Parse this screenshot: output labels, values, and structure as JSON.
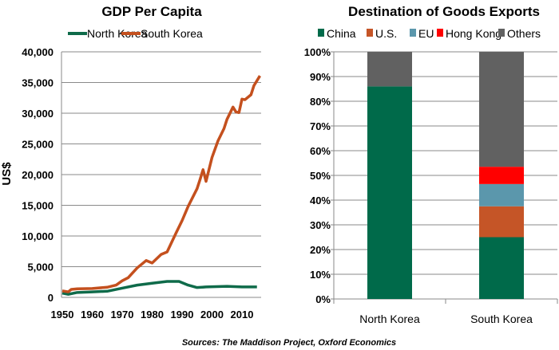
{
  "chart_data": [
    {
      "type": "line",
      "title": "GDP Per Capita",
      "ylabel": "US$",
      "xlabel": "",
      "ylim": [
        0,
        40000
      ],
      "xlim": [
        1950,
        2016
      ],
      "y_ticks": [
        "0",
        "5,000",
        "10,000",
        "15,000",
        "20,000",
        "25,000",
        "30,000",
        "35,000",
        "40,000"
      ],
      "x_ticks": [
        "1950",
        "1960",
        "1970",
        "1980",
        "1990",
        "2000",
        "2010"
      ],
      "grid": "horizontal",
      "legend_position": "top",
      "series": [
        {
          "name": "North Korea",
          "color": "#0f6b4a",
          "x": [
            1950,
            1952,
            1955,
            1960,
            1965,
            1970,
            1975,
            1980,
            1985,
            1989,
            1992,
            1995,
            1998,
            2005,
            2010,
            2015
          ],
          "y": [
            700,
            500,
            800,
            900,
            1000,
            1500,
            2000,
            2300,
            2600,
            2600,
            2000,
            1600,
            1700,
            1800,
            1700,
            1700
          ]
        },
        {
          "name": "South Korea",
          "color": "#c4501e",
          "x": [
            1950,
            1952,
            1953,
            1955,
            1960,
            1965,
            1968,
            1970,
            1972,
            1975,
            1978,
            1980,
            1983,
            1985,
            1988,
            1990,
            1992,
            1995,
            1996,
            1997,
            1998,
            2000,
            2002,
            2004,
            2005,
            2007,
            2008,
            2009,
            2010,
            2011,
            2013,
            2014,
            2016
          ],
          "y": [
            1050,
            900,
            1300,
            1400,
            1450,
            1650,
            2000,
            2700,
            3200,
            4800,
            6000,
            5600,
            7000,
            7400,
            10500,
            12500,
            14800,
            17700,
            19200,
            20800,
            18900,
            22800,
            25500,
            27500,
            29000,
            31000,
            30200,
            30100,
            32300,
            32200,
            33000,
            34500,
            36100
          ]
        }
      ]
    },
    {
      "type": "bar",
      "stacked": true,
      "title": "Destination of Goods Exports",
      "ylim": [
        0,
        100
      ],
      "y_ticks": [
        "0%",
        "10%",
        "20%",
        "30%",
        "40%",
        "50%",
        "60%",
        "70%",
        "80%",
        "90%",
        "100%"
      ],
      "categories": [
        "North Korea",
        "South Korea"
      ],
      "grid": "horizontal",
      "legend_position": "top",
      "series": [
        {
          "name": "China",
          "color": "#006a4a",
          "values": [
            86,
            25
          ]
        },
        {
          "name": "U.S.",
          "color": "#c55527",
          "values": [
            0,
            12.5
          ]
        },
        {
          "name": "EU",
          "color": "#5b97ac",
          "values": [
            0,
            9
          ]
        },
        {
          "name": "Hong Kong",
          "color": "#ff0000",
          "values": [
            0,
            7
          ]
        },
        {
          "name": "Others",
          "color": "#616161",
          "values": [
            14,
            46.5
          ]
        }
      ]
    }
  ],
  "footer": {
    "source": "Sources: The Maddison Project, Oxford Economics"
  }
}
